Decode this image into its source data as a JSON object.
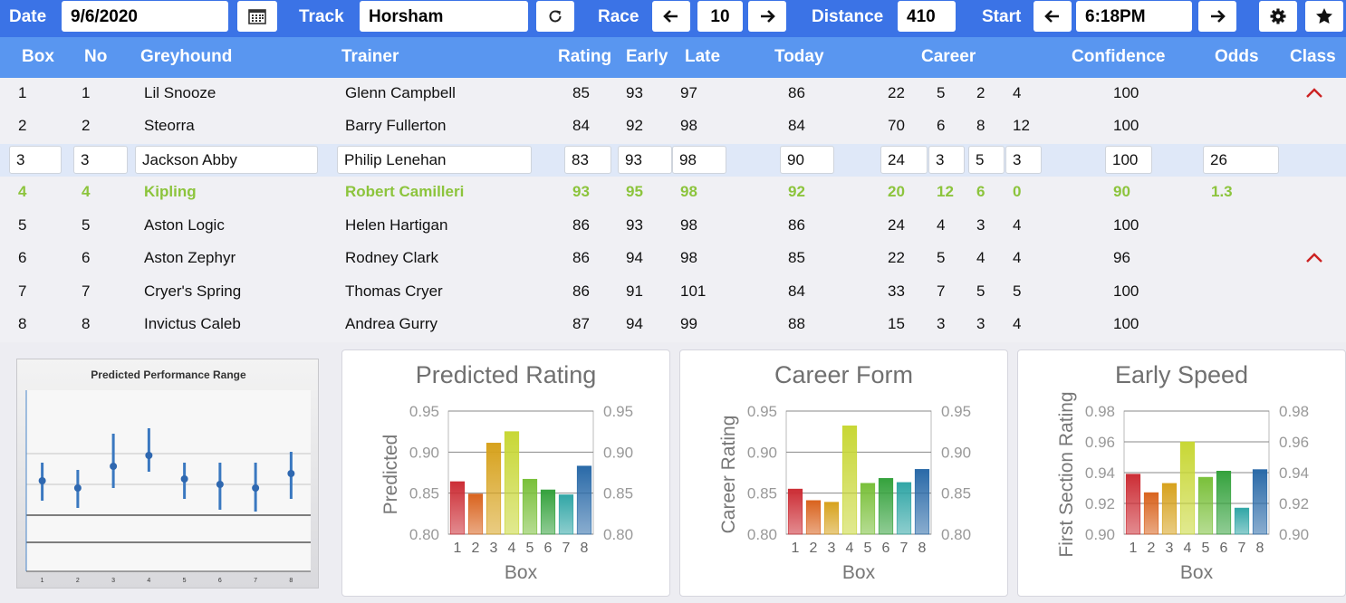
{
  "toolbar": {
    "date_label": "Date",
    "date_value": "9/6/2020",
    "track_label": "Track",
    "track_value": "Horsham",
    "race_label": "Race",
    "race_value": "10",
    "distance_label": "Distance",
    "distance_value": "410",
    "start_label": "Start",
    "start_value": "6:18PM"
  },
  "columns": {
    "box": "Box",
    "no": "No",
    "greyhound": "Greyhound",
    "trainer": "Trainer",
    "rating": "Rating",
    "early": "Early",
    "late": "Late",
    "today": "Today",
    "career": "Career",
    "confidence": "Confidence",
    "odds": "Odds",
    "class": "Class"
  },
  "rows": [
    {
      "box": "1",
      "no": "1",
      "greyhound": "Lil Snooze",
      "trainer": "Glenn Campbell",
      "rating": "85",
      "early": "93",
      "late": "97",
      "today": "86",
      "c1": "22",
      "c2": "5",
      "c3": "2",
      "c4": "4",
      "confidence": "100",
      "odds": "",
      "class_up": true
    },
    {
      "box": "2",
      "no": "2",
      "greyhound": "Steorra",
      "trainer": "Barry Fullerton",
      "rating": "84",
      "early": "92",
      "late": "98",
      "today": "84",
      "c1": "70",
      "c2": "6",
      "c3": "8",
      "c4": "12",
      "confidence": "100",
      "odds": "",
      "class_up": false
    },
    {
      "box": "3",
      "no": "3",
      "greyhound": "Jackson Abby",
      "trainer": "Philip Lenehan",
      "rating": "83",
      "early": "93",
      "late": "98",
      "today": "90",
      "c1": "24",
      "c2": "3",
      "c3": "5",
      "c4": "3",
      "confidence": "100",
      "odds": "26",
      "class_up": false
    },
    {
      "box": "4",
      "no": "4",
      "greyhound": "Kipling",
      "trainer": "Robert Camilleri",
      "rating": "93",
      "early": "95",
      "late": "98",
      "today": "92",
      "c1": "20",
      "c2": "12",
      "c3": "6",
      "c4": "0",
      "confidence": "90",
      "odds": "1.3",
      "class_up": false
    },
    {
      "box": "5",
      "no": "5",
      "greyhound": "Aston Logic",
      "trainer": "Helen Hartigan",
      "rating": "86",
      "early": "93",
      "late": "98",
      "today": "86",
      "c1": "24",
      "c2": "4",
      "c3": "3",
      "c4": "4",
      "confidence": "100",
      "odds": "",
      "class_up": false
    },
    {
      "box": "6",
      "no": "6",
      "greyhound": "Aston Zephyr",
      "trainer": "Rodney Clark",
      "rating": "86",
      "early": "94",
      "late": "98",
      "today": "85",
      "c1": "22",
      "c2": "5",
      "c3": "4",
      "c4": "4",
      "confidence": "96",
      "odds": "",
      "class_up": true
    },
    {
      "box": "7",
      "no": "7",
      "greyhound": "Cryer's Spring",
      "trainer": "Thomas Cryer",
      "rating": "86",
      "early": "91",
      "late": "101",
      "today": "84",
      "c1": "33",
      "c2": "7",
      "c3": "5",
      "c4": "5",
      "confidence": "100",
      "odds": "",
      "class_up": false
    },
    {
      "box": "8",
      "no": "8",
      "greyhound": "Invictus Caleb",
      "trainer": "Andrea Gurry",
      "rating": "87",
      "early": "94",
      "late": "99",
      "today": "88",
      "c1": "15",
      "c2": "3",
      "c3": "3",
      "c4": "4",
      "confidence": "100",
      "odds": "",
      "class_up": false
    }
  ],
  "colors": {
    "header": "#5996f0",
    "topbar": "#3b73e6",
    "highlight_row": "#8cc43c",
    "selected_row": "#dfe8f8",
    "class_arrow": "#cc2222"
  },
  "chart_data": [
    {
      "type": "scatter",
      "title": "Predicted Performance Range",
      "categories": [
        "1",
        "2",
        "3",
        "4",
        "5",
        "6",
        "7",
        "8"
      ],
      "series": [
        {
          "values": [
            0.5,
            0.46,
            0.58,
            0.64,
            0.51,
            0.48,
            0.46,
            0.54
          ],
          "low": [
            0.39,
            0.35,
            0.46,
            0.55,
            0.4,
            0.34,
            0.33,
            0.4
          ],
          "high": [
            0.6,
            0.56,
            0.76,
            0.79,
            0.6,
            0.6,
            0.6,
            0.66
          ]
        }
      ]
    },
    {
      "type": "bar",
      "title": "Predicted Rating",
      "categories": [
        "1",
        "2",
        "3",
        "4",
        "5",
        "6",
        "7",
        "8"
      ],
      "values": [
        0.864,
        0.849,
        0.911,
        0.925,
        0.867,
        0.854,
        0.848,
        0.883
      ],
      "ylim": [
        0.8,
        0.95
      ],
      "yticks": [
        "0.95",
        "0.90",
        "0.85",
        "0.80"
      ],
      "ylabel": "Predicted",
      "xlabel": "Box"
    },
    {
      "type": "bar",
      "title": "Career Form",
      "categories": [
        "1",
        "2",
        "3",
        "4",
        "5",
        "6",
        "7",
        "8"
      ],
      "values": [
        0.855,
        0.841,
        0.839,
        0.932,
        0.862,
        0.868,
        0.863,
        0.879
      ],
      "ylim": [
        0.8,
        0.95
      ],
      "yticks": [
        "0.95",
        "0.90",
        "0.85",
        "0.80"
      ],
      "ylabel": "Career Rating",
      "xlabel": "Box"
    },
    {
      "type": "bar",
      "title": "Early Speed",
      "categories": [
        "1",
        "2",
        "3",
        "4",
        "5",
        "6",
        "7",
        "8"
      ],
      "values": [
        0.939,
        0.927,
        0.933,
        0.96,
        0.937,
        0.941,
        0.917,
        0.942
      ],
      "ylim": [
        0.9,
        0.98
      ],
      "yticks": [
        "0.98",
        "0.96",
        "0.94",
        "0.92",
        "0.90"
      ],
      "ylabel": "First Section Rating",
      "xlabel": "Box"
    }
  ]
}
